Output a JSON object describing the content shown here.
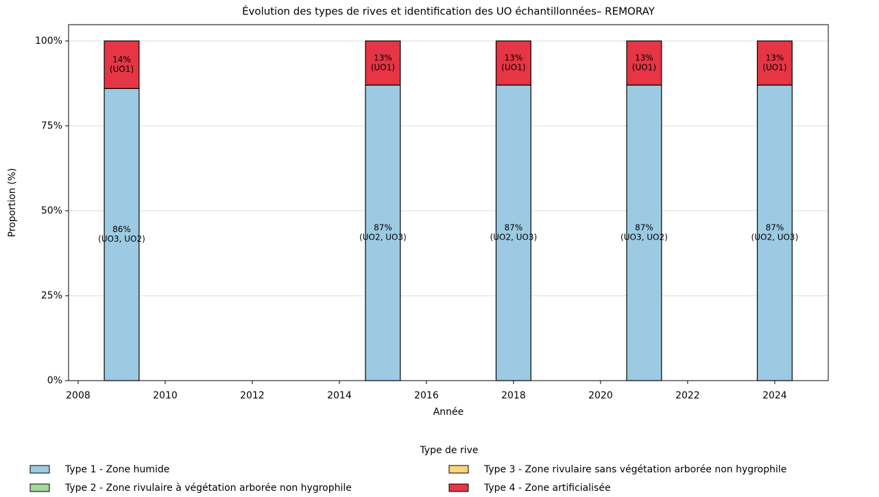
{
  "chart_data": {
    "type": "bar",
    "stacked": true,
    "title": "Évolution des types de rives et identification des UO échantillonnées– REMORAY",
    "x_label": "Année",
    "y_label": "Proportion (%)",
    "x": [
      2009,
      2015,
      2018,
      2021,
      2024
    ],
    "series": [
      {
        "name": "Type 1 - Zone humide",
        "color": "#9ccae2",
        "values": [
          86,
          87,
          87,
          87,
          87
        ],
        "value_labels": [
          "86%",
          "87%",
          "87%",
          "87%",
          "87%"
        ],
        "uo_labels": [
          "(UO3, UO2)",
          "(UO2, UO3)",
          "(UO2, UO3)",
          "(UO3, UO2)",
          "(UO2, UO3)"
        ]
      },
      {
        "name": "Type 2 - Zone rivulaire à végétation arborée non hygrophile",
        "color": "#a3d99c",
        "values": [
          0,
          0,
          0,
          0,
          0
        ]
      },
      {
        "name": "Type 3 - Zone rivulaire sans végétation arborée non hygrophile",
        "color": "#fcd47a",
        "values": [
          0,
          0,
          0,
          0,
          0
        ]
      },
      {
        "name": "Type 4 - Zone artificialisée",
        "color": "#e63545",
        "values": [
          14,
          13,
          13,
          13,
          13
        ],
        "value_labels": [
          "14%",
          "13%",
          "13%",
          "13%",
          "13%"
        ],
        "uo_labels": [
          "(UO1)",
          "(UO1)",
          "(UO1)",
          "(UO1)",
          "(UO1)"
        ]
      }
    ],
    "xlim": [
      2007.78,
      2025.23
    ],
    "xticks": [
      2008,
      2010,
      2012,
      2014,
      2016,
      2018,
      2020,
      2022,
      2024
    ],
    "ylim": [
      0,
      104.8
    ],
    "yticks": [
      {
        "value": 0,
        "label": "0%"
      },
      {
        "value": 25,
        "label": "25%"
      },
      {
        "value": 50,
        "label": "50%"
      },
      {
        "value": 75,
        "label": "75%"
      },
      {
        "value": 100,
        "label": "100%"
      }
    ],
    "grid": true,
    "legend_title": "Type de rive",
    "legend": "below"
  }
}
